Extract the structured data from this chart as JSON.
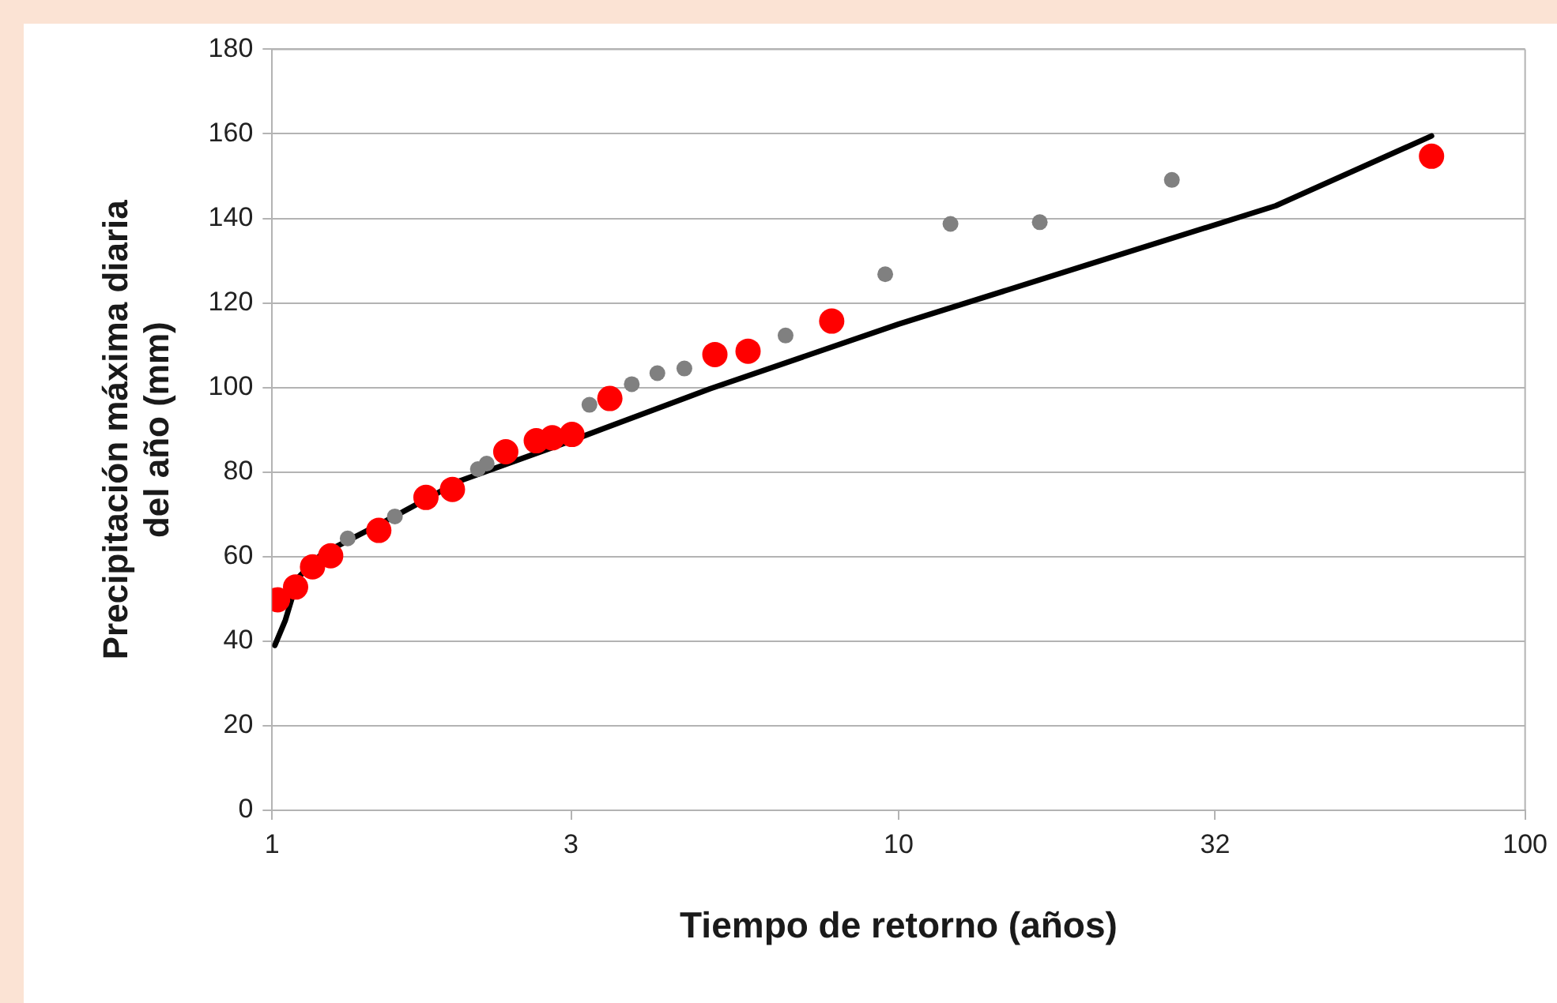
{
  "chart_data": {
    "type": "scatter",
    "xlabel": "Tiempo de retorno (años)",
    "ylabel": "Precipitación máxima diaria\ndel año (mm)",
    "log": "x",
    "xlim": [
      1,
      100
    ],
    "xticks": [
      1,
      3,
      10,
      32,
      100
    ],
    "ylim": [
      0,
      180
    ],
    "yticks": [
      0,
      20,
      40,
      60,
      80,
      100,
      120,
      140,
      160,
      180
    ],
    "grid": "y",
    "legend": false,
    "marker": "circle",
    "series": [
      {
        "type": "scatter",
        "color": "#808080",
        "x": [
          1.32,
          1.57,
          2.13,
          2.2,
          3.21,
          3.75,
          4.12,
          4.55,
          6.6,
          9.52,
          12.1,
          16.8,
          27.3
        ],
        "values": [
          64.3,
          69.5,
          80.7,
          82,
          95.9,
          100.8,
          103.4,
          104.5,
          112.3,
          126.8,
          138.7,
          139.1,
          149.1
        ]
      },
      {
        "type": "scatter",
        "color": "#ff0000",
        "x": [
          1.02,
          1.09,
          1.16,
          1.24,
          1.48,
          1.76,
          1.94,
          2.36,
          2.64,
          2.8,
          3.01,
          3.46,
          5.09,
          5.75,
          7.82,
          70.9
        ],
        "values": [
          49.8,
          52.8,
          57.6,
          60.2,
          66.2,
          74,
          75.9,
          84.8,
          87.4,
          88.1,
          88.9,
          97.4,
          107.8,
          108.6,
          115.7,
          154.7
        ]
      },
      {
        "type": "line",
        "color": "#000000",
        "marker": "none",
        "line_style": "solid",
        "x": [
          1.01,
          1.05,
          1.1,
          1.2,
          1.5,
          2,
          3,
          5,
          10,
          20,
          40,
          70.9
        ],
        "values": [
          39,
          45,
          55,
          60.6,
          68,
          78,
          87.4,
          99.7,
          115,
          129,
          143,
          159.5
        ]
      }
    ]
  }
}
